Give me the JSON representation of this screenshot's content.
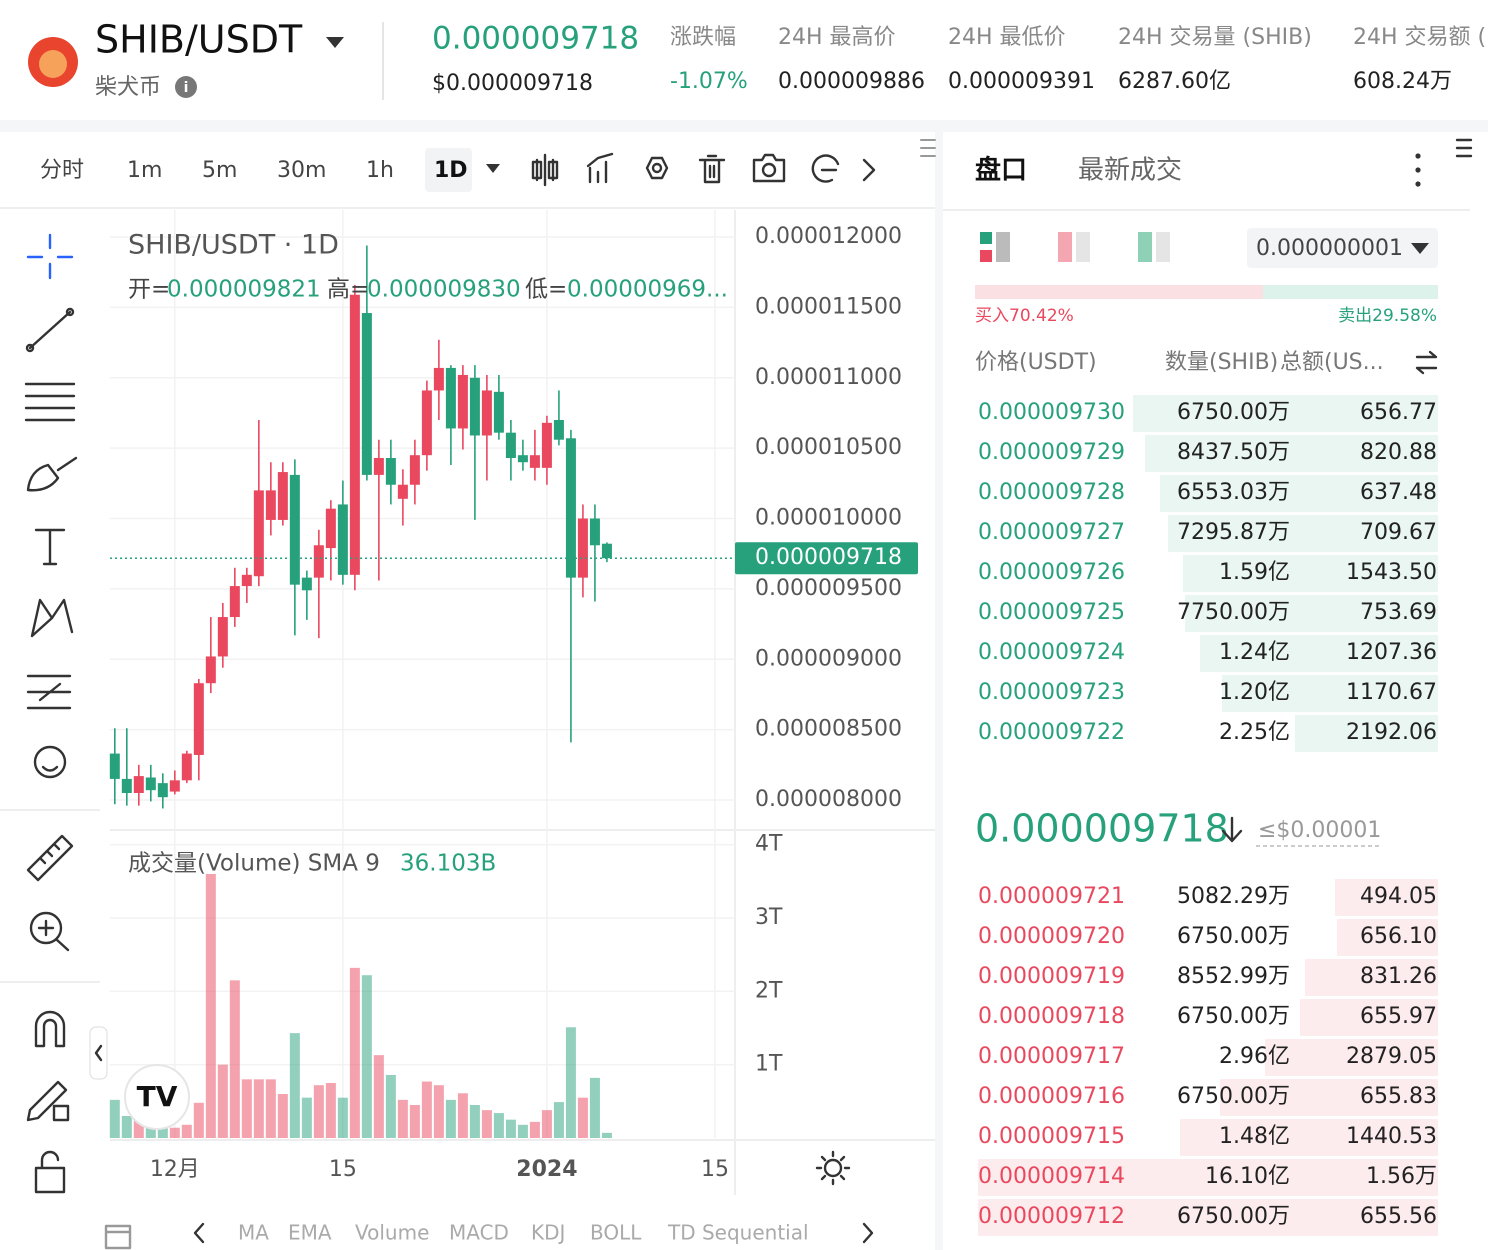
{
  "header": {
    "pair": "SHIB/USDT",
    "name": "柴犬币",
    "price": "0.000009718",
    "price_usd": "$0.000009718",
    "stats": [
      {
        "label": "涨跌幅",
        "value": "-1.07%"
      },
      {
        "label": "24H 最高价",
        "value": "0.000009886"
      },
      {
        "label": "24H 最低价",
        "value": "0.000009391"
      },
      {
        "label": "24H 交易量 (SHIB)",
        "value": "6287.60亿"
      },
      {
        "label": "24H 交易额 (",
        "value": "608.24万"
      }
    ]
  },
  "toolbar": {
    "intervals": [
      "分时",
      "1m",
      "5m",
      "30m",
      "1h",
      "1D"
    ]
  },
  "indicators": [
    "MA",
    "EMA",
    "Volume",
    "MACD",
    "KDJ",
    "BOLL",
    "TD Sequential"
  ],
  "chart_data": {
    "type": "candlestick",
    "title": "SHIB/USDT · 1D",
    "ohlc_labels": [
      "开=",
      "高=",
      "低="
    ],
    "ohlc_values": [
      "0.000009821",
      "0.000009830",
      "0.00000969..."
    ],
    "volume_title": "成交量(Volume) SMA 9",
    "volume_sma": "36.103B",
    "up_color": "#e9485e",
    "down_color": "#26a17b",
    "open": [
      8.33e-06,
      8.15e-06,
      8.05e-06,
      8.16e-06,
      8.12e-06,
      8.06e-06,
      8.14e-06,
      8.32e-06,
      8.83e-06,
      9.02e-06,
      9.3e-06,
      9.52e-06,
      9.59e-06,
      9.99e-06,
      9.99e-06,
      1.031e-05,
      9.58e-06,
      9.58e-06,
      9.79e-06,
      1.01e-05,
      9.6e-06,
      1.146e-05,
      1.031e-05,
      1.043e-05,
      1.014e-05,
      1.024e-05,
      1.045e-05,
      1.091e-05,
      1.107e-05,
      1.064e-05,
      1.1e-05,
      1.059e-05,
      1.09e-05,
      1.061e-05,
      1.045e-05,
      1.036e-05,
      1.036e-05,
      1.07e-05,
      1.057e-05,
      9.58e-06,
      1e-05,
      9.821e-06
    ],
    "high": [
      8.51e-06,
      8.51e-06,
      8.25e-06,
      8.25e-06,
      8.19e-06,
      8.21e-06,
      8.35e-06,
      8.86e-06,
      9.3e-06,
      9.4e-06,
      9.65e-06,
      9.65e-06,
      1.07e-05,
      1.04e-05,
      1.04e-05,
      1.042e-05,
      9.63e-06,
      9.92e-06,
      1.013e-05,
      1.027e-05,
      1.166e-05,
      1.194e-05,
      1.056e-05,
      1.056e-05,
      1.035e-05,
      1.056e-05,
      1.098e-05,
      1.127e-05,
      1.109e-05,
      1.109e-05,
      1.109e-05,
      1.102e-05,
      1.102e-05,
      1.07e-05,
      1.056e-05,
      1.063e-05,
      1.073e-05,
      1.091e-05,
      1.063e-05,
      1.01e-05,
      1.01e-05,
      9.83e-06
    ],
    "low": [
      7.97e-06,
      7.96e-06,
      7.96e-06,
      7.99e-06,
      7.94e-06,
      8.04e-06,
      8.12e-06,
      8.14e-06,
      8.76e-06,
      8.94e-06,
      9.23e-06,
      9.4e-06,
      9.52e-06,
      9.88e-06,
      9.95e-06,
      9.17e-06,
      9.28e-06,
      9.15e-06,
      9.56e-06,
      9.53e-06,
      9.49e-06,
      1.027e-05,
      9.56e-06,
      1.01e-05,
      9.95e-06,
      1.01e-05,
      1.034e-05,
      1.07e-05,
      1.038e-05,
      1.049e-05,
      9.99e-06,
      1.027e-05,
      1.056e-05,
      1.027e-05,
      1.034e-05,
      1.027e-05,
      1.024e-05,
      1.052e-05,
      8.41e-06,
      9.44e-06,
      9.41e-06,
      9.69e-06
    ],
    "close": [
      8.15e-06,
      8.05e-06,
      8.17e-06,
      8.07e-06,
      8.02e-06,
      8.14e-06,
      8.33e-06,
      8.83e-06,
      9.02e-06,
      9.3e-06,
      9.52e-06,
      9.6e-06,
      1.02e-05,
      1.02e-05,
      1.033e-05,
      9.53e-06,
      9.49e-06,
      9.81e-06,
      1.007e-05,
      9.6e-06,
      1.159e-05,
      1.031e-05,
      1.043e-05,
      1.024e-05,
      1.024e-05,
      1.045e-05,
      1.091e-05,
      1.107e-05,
      1.064e-05,
      1.102e-05,
      1.059e-05,
      1.091e-05,
      1.061e-05,
      1.043e-05,
      1.04e-05,
      1.045e-05,
      1.068e-05,
      1.056e-05,
      9.58e-06,
      1e-05,
      9.81e-06,
      9.718e-06
    ],
    "volume": [
      520000000000,
      300000000000,
      250000000000,
      180000000000,
      140000000000,
      140000000000,
      180000000000,
      480000000000,
      3600000000000,
      1000000000000,
      2150000000000,
      800000000000,
      800000000000,
      800000000000,
      600000000000,
      1430000000000,
      550000000000,
      720000000000,
      750000000000,
      550000000000,
      2320000000000,
      2220000000000,
      1130000000000,
      860000000000,
      520000000000,
      450000000000,
      770000000000,
      720000000000,
      520000000000,
      610000000000,
      450000000000,
      380000000000,
      340000000000,
      250000000000,
      180000000000,
      220000000000,
      380000000000,
      490000000000,
      1510000000000,
      550000000000,
      820000000000,
      70000000000
    ],
    "xlim": [
      -0.4,
      51.67
    ],
    "xticks": [
      {
        "value": 5,
        "label": "12月"
      },
      {
        "value": 19,
        "label": "15"
      },
      {
        "value": 36,
        "label": "2024"
      },
      {
        "value": 50,
        "label": "15"
      }
    ],
    "ylim": [
      7.787e-06,
      1.2192e-05
    ],
    "yticks": [
      {
        "value": 1.2e-05,
        "label": "0.000012000"
      },
      {
        "value": 1.15e-05,
        "label": "0.000011500"
      },
      {
        "value": 1.1e-05,
        "label": "0.000011000"
      },
      {
        "value": 1.05e-05,
        "label": "0.000010500"
      },
      {
        "value": 1e-05,
        "label": "0.000010000"
      },
      {
        "value": 9.5e-06,
        "label": "0.000009500"
      },
      {
        "value": 9e-06,
        "label": "0.000009000"
      },
      {
        "value": 8.5e-06,
        "label": "0.000008500"
      },
      {
        "value": 8e-06,
        "label": "0.000008000"
      }
    ],
    "volume_ylim": [
      0,
      4200000000000
    ],
    "volume_ticks": [
      {
        "value": 4000000000000,
        "label": "4T"
      },
      {
        "value": 3000000000000,
        "label": "3T"
      },
      {
        "value": 2000000000000,
        "label": "2T"
      },
      {
        "value": 1000000000000,
        "label": "1T"
      }
    ],
    "grid": true
  },
  "orderbook": {
    "tabs": [
      "盘口",
      "最新成交"
    ],
    "precision": "0.000000001",
    "buy_ratio": "买入70.42%",
    "sell_ratio": "卖出29.58%",
    "columns": [
      "价格(USDT)",
      "数量(SHIB)",
      "总额(US..."
    ],
    "asks": [
      [
        "0.000009730",
        "6750.00万",
        "656.77"
      ],
      [
        "0.000009729",
        "8437.50万",
        "820.88"
      ],
      [
        "0.000009728",
        "6553.03万",
        "637.48"
      ],
      [
        "0.000009727",
        "7295.87万",
        "709.67"
      ],
      [
        "0.000009726",
        "1.59亿",
        "1543.50"
      ],
      [
        "0.000009725",
        "7750.00万",
        "753.69"
      ],
      [
        "0.000009724",
        "1.24亿",
        "1207.36"
      ],
      [
        "0.000009723",
        "1.20亿",
        "1170.67"
      ],
      [
        "0.000009722",
        "2.25亿",
        "2192.06"
      ]
    ],
    "mid_price": "0.000009718",
    "mid_usd": "≤$0.00001",
    "bids": [
      [
        "0.000009721",
        "5082.29万",
        "494.05"
      ],
      [
        "0.000009720",
        "6750.00万",
        "656.10"
      ],
      [
        "0.000009719",
        "8552.99万",
        "831.26"
      ],
      [
        "0.000009718",
        "6750.00万",
        "655.97"
      ],
      [
        "0.000009717",
        "2.96亿",
        "2879.05"
      ],
      [
        "0.000009716",
        "6750.00万",
        "655.83"
      ],
      [
        "0.000009715",
        "1.48亿",
        "1440.53"
      ],
      [
        "0.000009714",
        "16.10亿",
        "1.56万"
      ],
      [
        "0.000009712",
        "6750.00万",
        "655.56"
      ]
    ]
  }
}
